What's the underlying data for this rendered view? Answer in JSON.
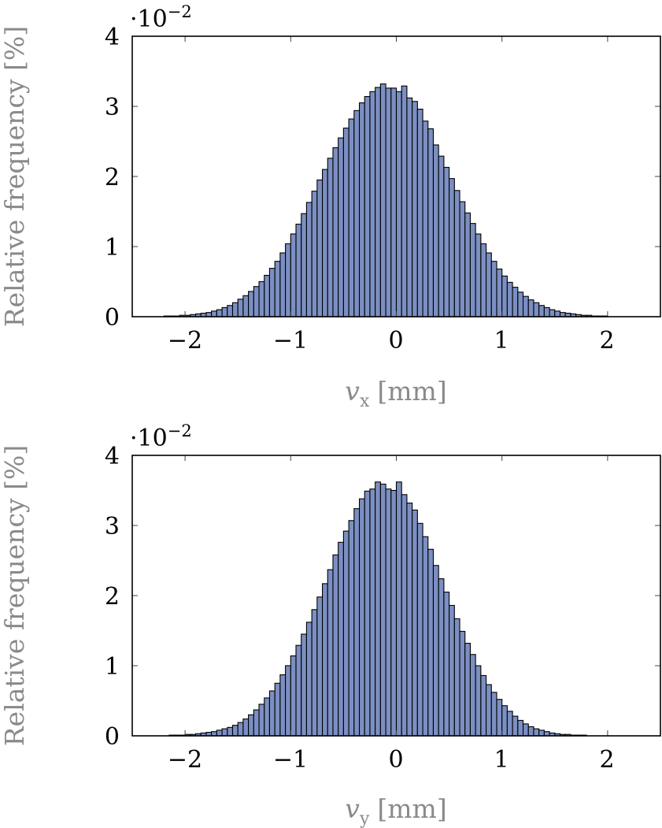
{
  "chart_data": [
    {
      "type": "bar",
      "xlabel_var": "v",
      "xlabel_sub": "x",
      "xlabel_unit": "[mm]",
      "ylabel": "Relative frequency [%]",
      "scale_base": "·10",
      "scale_exp": "−2",
      "xlim": [
        -2.5,
        2.5
      ],
      "ylim": [
        0,
        4
      ],
      "xticks": [
        "−2",
        "−1",
        "0",
        "1",
        "2"
      ],
      "yticks": [
        "0",
        "1",
        "2",
        "3",
        "4"
      ],
      "bin_start": -2.3,
      "bin_width": 0.05,
      "values": [
        0.0,
        0.0,
        0.01,
        0.01,
        0.01,
        0.02,
        0.02,
        0.03,
        0.04,
        0.05,
        0.06,
        0.08,
        0.1,
        0.13,
        0.16,
        0.2,
        0.25,
        0.3,
        0.36,
        0.43,
        0.5,
        0.59,
        0.69,
        0.79,
        0.91,
        1.04,
        1.18,
        1.32,
        1.47,
        1.63,
        1.79,
        1.95,
        2.1,
        2.26,
        2.41,
        2.55,
        2.69,
        2.82,
        2.94,
        3.05,
        3.14,
        3.21,
        3.27,
        3.32,
        3.26,
        3.26,
        3.21,
        3.29,
        3.12,
        3.07,
        2.96,
        2.79,
        2.68,
        2.45,
        2.29,
        2.13,
        1.97,
        1.8,
        1.64,
        1.48,
        1.33,
        1.18,
        1.04,
        0.91,
        0.79,
        0.68,
        0.58,
        0.49,
        0.42,
        0.35,
        0.29,
        0.24,
        0.2,
        0.16,
        0.13,
        0.1,
        0.08,
        0.06,
        0.05,
        0.04,
        0.03,
        0.02,
        0.02,
        0.01,
        0.01,
        0.01,
        0.0,
        0.0,
        0.0,
        0.0,
        0.0
      ],
      "fill_color": "#7b8fc2",
      "edge_color": "#000000"
    },
    {
      "type": "bar",
      "xlabel_var": "v",
      "xlabel_sub": "y",
      "xlabel_unit": "[mm]",
      "ylabel": "Relative frequency [%]",
      "scale_base": "·10",
      "scale_exp": "−2",
      "xlim": [
        -2.5,
        2.5
      ],
      "ylim": [
        0,
        4
      ],
      "xticks": [
        "−2",
        "−1",
        "0",
        "1",
        "2"
      ],
      "yticks": [
        "0",
        "1",
        "2",
        "3",
        "4"
      ],
      "bin_start": -2.3,
      "bin_width": 0.05,
      "values": [
        0.0,
        0.0,
        0.0,
        0.01,
        0.01,
        0.01,
        0.02,
        0.02,
        0.03,
        0.04,
        0.05,
        0.06,
        0.08,
        0.1,
        0.12,
        0.15,
        0.19,
        0.24,
        0.3,
        0.37,
        0.45,
        0.54,
        0.64,
        0.75,
        0.87,
        1.0,
        1.14,
        1.29,
        1.45,
        1.62,
        1.8,
        1.98,
        2.17,
        2.37,
        2.58,
        2.76,
        2.92,
        3.07,
        3.24,
        3.38,
        3.49,
        3.52,
        3.62,
        3.59,
        3.52,
        3.5,
        3.62,
        3.44,
        3.32,
        3.22,
        3.03,
        2.84,
        2.66,
        2.43,
        2.24,
        2.05,
        1.86,
        1.67,
        1.49,
        1.32,
        1.16,
        1.0,
        0.86,
        0.73,
        0.62,
        0.52,
        0.43,
        0.35,
        0.28,
        0.22,
        0.17,
        0.13,
        0.1,
        0.08,
        0.06,
        0.04,
        0.03,
        0.02,
        0.02,
        0.01,
        0.01,
        0.01,
        0.0,
        0.0,
        0.0,
        0.0,
        0.0,
        0.0,
        0.0,
        0.0,
        0.0
      ],
      "fill_color": "#7b8fc2",
      "edge_color": "#000000"
    }
  ]
}
